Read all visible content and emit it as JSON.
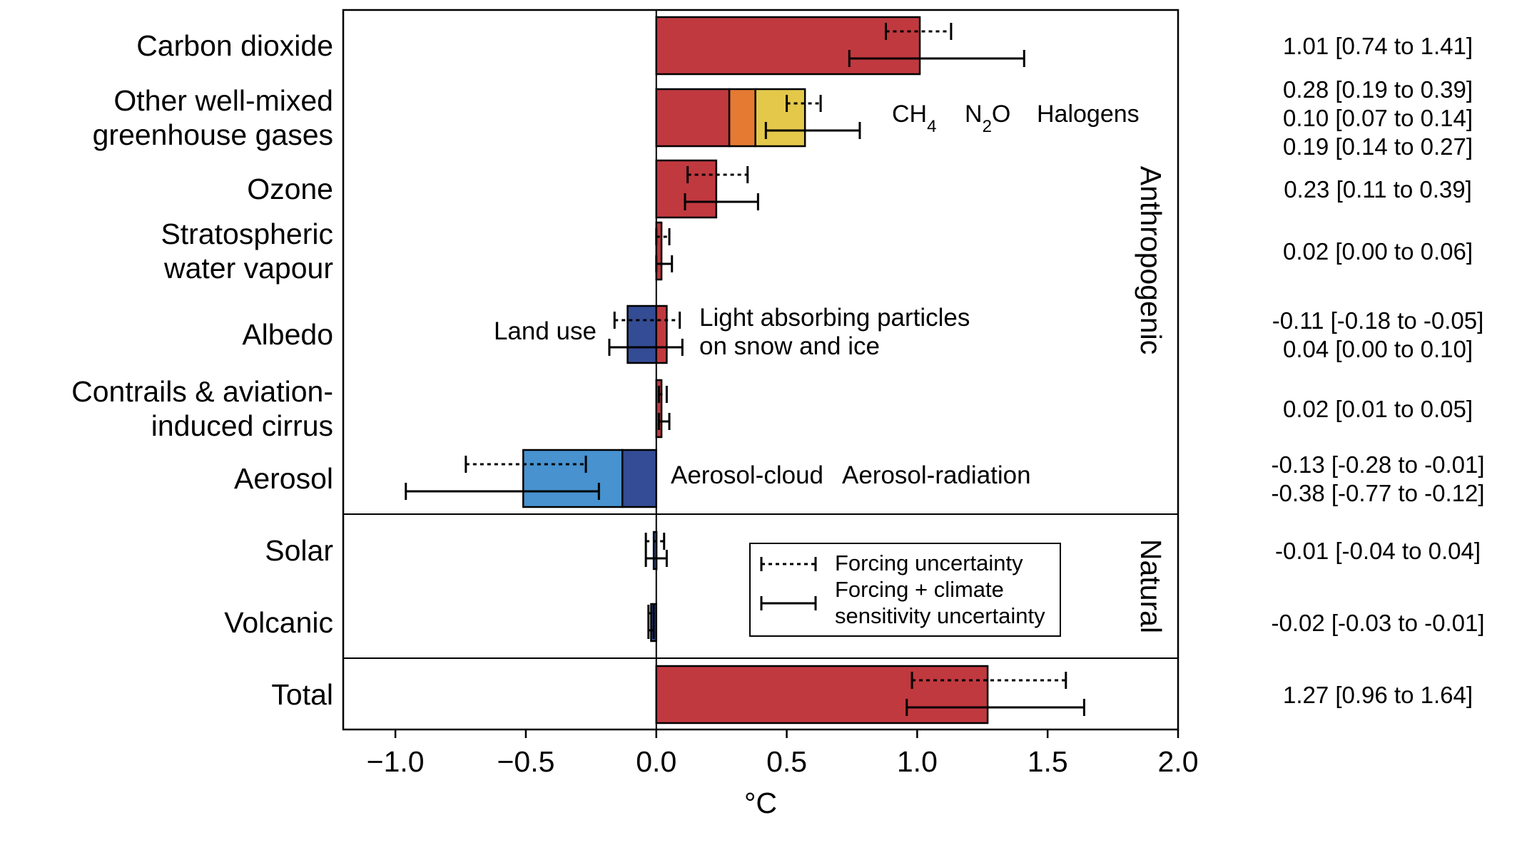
{
  "chart_data": {
    "type": "bar",
    "orientation": "horizontal",
    "xlabel": "°C",
    "xlim": [
      -1.2,
      2.0
    ],
    "xticks": [
      -1.0,
      -0.5,
      0.0,
      0.5,
      1.0,
      1.5,
      2.0
    ],
    "xtick_labels": [
      "−1.0",
      "−0.5",
      "0.0",
      "0.5",
      "1.0",
      "1.5",
      "2.0"
    ],
    "grid": false,
    "colors": {
      "red": "#c0393f",
      "orange": "#e57a32",
      "yellow": "#e3c84a",
      "dark_blue": "#334c94",
      "light_blue": "#4792cf"
    },
    "group_labels": [
      "Anthropogenic",
      "Natural"
    ],
    "categories": [
      {
        "label_lines": [
          "Carbon dioxide"
        ],
        "segments": [
          {
            "start": 0,
            "end": 1.01,
            "color": "red"
          }
        ],
        "forcing_range": [
          0.88,
          1.13
        ],
        "total_range": [
          0.74,
          1.41
        ],
        "values_text": [
          {
            "text": "1.01 [0.74 to 1.41]",
            "color": "#000000"
          }
        ]
      },
      {
        "label_lines": [
          "Other well-mixed",
          "greenhouse gases"
        ],
        "segments": [
          {
            "name": "CH4",
            "start": 0,
            "end": 0.28,
            "color": "red"
          },
          {
            "name": "N2O",
            "start": 0.28,
            "end": 0.38,
            "color": "orange"
          },
          {
            "name": "Halogens",
            "start": 0.38,
            "end": 0.57,
            "color": "yellow"
          }
        ],
        "forcing_range": [
          0.5,
          0.63
        ],
        "total_range": [
          0.42,
          0.78
        ],
        "values_text": [
          {
            "text": "0.28 [0.19 to 0.39]",
            "color": "#c0393f"
          },
          {
            "text": "0.10 [0.07 to 0.14]",
            "color": "#e57a32"
          },
          {
            "text": "0.19 [0.14 to 0.27]",
            "color": "#e3c84a"
          }
        ]
      },
      {
        "label_lines": [
          "Ozone"
        ],
        "segments": [
          {
            "start": 0,
            "end": 0.23,
            "color": "red"
          }
        ],
        "forcing_range": [
          0.12,
          0.35
        ],
        "total_range": [
          0.11,
          0.39
        ],
        "values_text": [
          {
            "text": "0.23 [0.11 to 0.39]",
            "color": "#000000"
          }
        ]
      },
      {
        "label_lines": [
          "Stratospheric",
          "water vapour"
        ],
        "segments": [
          {
            "start": 0,
            "end": 0.02,
            "color": "red"
          }
        ],
        "forcing_range": [
          0.0,
          0.05
        ],
        "total_range": [
          0.0,
          0.06
        ],
        "values_text": [
          {
            "text": "0.02 [0.00 to 0.06]",
            "color": "#000000"
          }
        ]
      },
      {
        "label_lines": [
          "Albedo"
        ],
        "segments": [
          {
            "name": "Land use",
            "start": -0.11,
            "end": 0,
            "color": "dark_blue"
          },
          {
            "name": "Light absorbing particles on snow and ice",
            "start": 0,
            "end": 0.04,
            "color": "red"
          }
        ],
        "forcing_range": [
          -0.16,
          0.09
        ],
        "total_range": [
          -0.18,
          0.1
        ],
        "values_text": [
          {
            "text": "-0.11 [-0.18 to -0.05]",
            "color": "#334c94"
          },
          {
            "text": "0.04 [0.00 to 0.10]",
            "color": "#c0393f"
          }
        ]
      },
      {
        "label_lines": [
          "Contrails & aviation-",
          "induced cirrus"
        ],
        "segments": [
          {
            "start": 0,
            "end": 0.02,
            "color": "red"
          }
        ],
        "forcing_range": [
          0.01,
          0.04
        ],
        "total_range": [
          0.01,
          0.05
        ],
        "values_text": [
          {
            "text": "0.02 [0.01 to 0.05]",
            "color": "#000000"
          }
        ]
      },
      {
        "label_lines": [
          "Aerosol"
        ],
        "segments": [
          {
            "name": "Aerosol-radiation",
            "start": -0.13,
            "end": 0,
            "color": "dark_blue"
          },
          {
            "name": "Aerosol-cloud",
            "start": -0.51,
            "end": -0.13,
            "color": "light_blue"
          }
        ],
        "forcing_range": [
          -0.73,
          -0.27
        ],
        "total_range": [
          -0.96,
          -0.22
        ],
        "values_text": [
          {
            "text": "-0.13 [-0.28 to -0.01]",
            "color": "#334c94"
          },
          {
            "text": "-0.38 [-0.77 to -0.12]",
            "color": "#4792cf"
          }
        ]
      },
      {
        "label_lines": [
          "Solar"
        ],
        "segments": [
          {
            "start": -0.01,
            "end": 0,
            "color": "dark_blue"
          }
        ],
        "forcing_range": [
          -0.04,
          0.03
        ],
        "total_range": [
          -0.04,
          0.04
        ],
        "values_text": [
          {
            "text": "-0.01 [-0.04 to 0.04]",
            "color": "#000000"
          }
        ]
      },
      {
        "label_lines": [
          "Volcanic"
        ],
        "segments": [
          {
            "start": -0.02,
            "end": 0,
            "color": "dark_blue"
          }
        ],
        "forcing_range": [
          -0.03,
          -0.01
        ],
        "total_range": [
          -0.03,
          -0.01
        ],
        "values_text": [
          {
            "text": "-0.02 [-0.03 to -0.01]",
            "color": "#000000"
          }
        ]
      },
      {
        "label_lines": [
          "Total"
        ],
        "segments": [
          {
            "start": 0,
            "end": 1.27,
            "color": "red"
          }
        ],
        "forcing_range": [
          0.98,
          1.57
        ],
        "total_range": [
          0.96,
          1.64
        ],
        "values_text": [
          {
            "text": "1.27 [0.96 to 1.64]",
            "color": "#000000"
          }
        ]
      }
    ],
    "segment_labels": [
      {
        "row": 1,
        "parts": [
          {
            "text": "CH",
            "sub": "4",
            "color": "red"
          },
          {
            "text": "N",
            "sub": "2",
            "text2": "O",
            "color": "orange"
          },
          {
            "text": "Halogens",
            "color": "yellow"
          }
        ]
      },
      {
        "row": 4,
        "left": "Land use",
        "left_color": "dark_blue",
        "right_lines": [
          "Light absorbing particles",
          "on snow and ice"
        ],
        "right_color": "red"
      },
      {
        "row": 6,
        "labels": [
          {
            "text": "Aerosol-cloud",
            "color": "light_blue"
          },
          {
            "text": "Aerosol-radiation",
            "color": "dark_blue"
          }
        ]
      }
    ],
    "legend": {
      "placement": "lower-middle",
      "entries": [
        {
          "style": "dotted",
          "lines": [
            "Forcing uncertainty"
          ]
        },
        {
          "style": "solid",
          "lines": [
            "Forcing + climate",
            "sensitivity uncertainty"
          ]
        }
      ]
    }
  }
}
